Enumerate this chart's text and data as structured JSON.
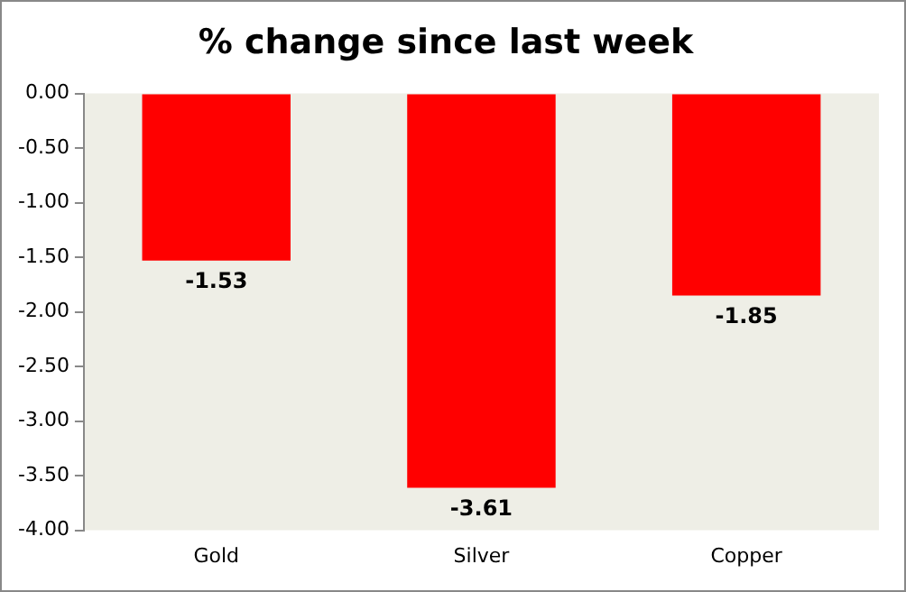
{
  "chart_data": {
    "type": "bar",
    "title": "% change since last week",
    "categories": [
      "Gold",
      "Silver",
      "Copper"
    ],
    "values": [
      -1.53,
      -3.61,
      -1.85
    ],
    "color": "#ff0000",
    "ylim": [
      -4,
      0
    ],
    "yticks": [
      {
        "value": 0,
        "label": "0.00"
      },
      {
        "value": -0.5,
        "label": "-0.50"
      },
      {
        "value": -1,
        "label": "-1.00"
      },
      {
        "value": -1.5,
        "label": "-1.50"
      },
      {
        "value": -2,
        "label": "-2.00"
      },
      {
        "value": -2.5,
        "label": "-2.50"
      },
      {
        "value": -3,
        "label": "-3.00"
      },
      {
        "value": -3.5,
        "label": "-3.50"
      },
      {
        "value": -4,
        "label": "-4.00"
      }
    ],
    "data_labels": true,
    "grid": false,
    "legend": false
  }
}
